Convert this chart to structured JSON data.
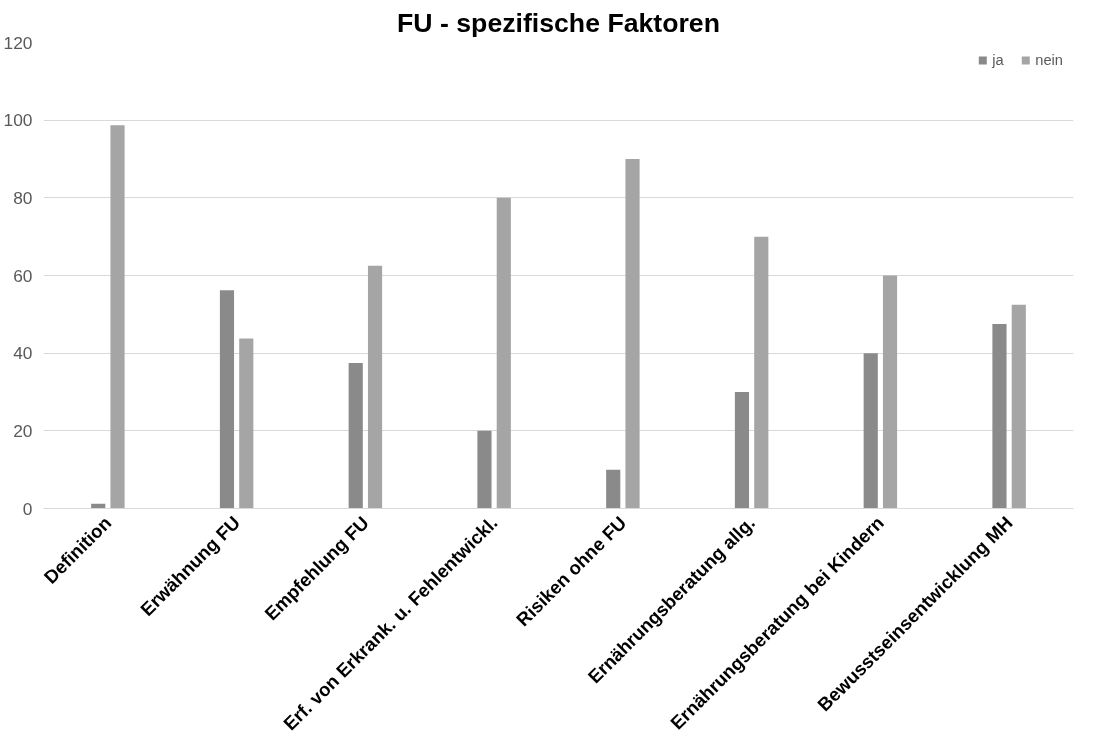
{
  "chart_data": {
    "type": "bar",
    "title": "FU - spezifische Faktoren",
    "categories": [
      "Definition",
      "Erwähnung FU",
      "Empfehlung FU",
      "Erf. von Erkrank. u. Fehlentwickl.",
      "Risiken ohne FU",
      "Ernährungsberatung allg.",
      "Ernährungsberatung bei Kindern",
      "Bewusstseinsentwicklung MH"
    ],
    "series": [
      {
        "name": "ja",
        "color": "#8a8a8a",
        "values": [
          1.2,
          56.2,
          37.5,
          20,
          10,
          30,
          40,
          47.5
        ]
      },
      {
        "name": "nein",
        "color": "#a5a5a5",
        "values": [
          98.7,
          43.8,
          62.5,
          80,
          90,
          70,
          60,
          52.5
        ]
      }
    ],
    "ylim": [
      0,
      120
    ],
    "yticks": [
      0,
      20,
      40,
      60,
      80,
      100,
      120
    ],
    "grid": "y",
    "legend": "top right"
  }
}
